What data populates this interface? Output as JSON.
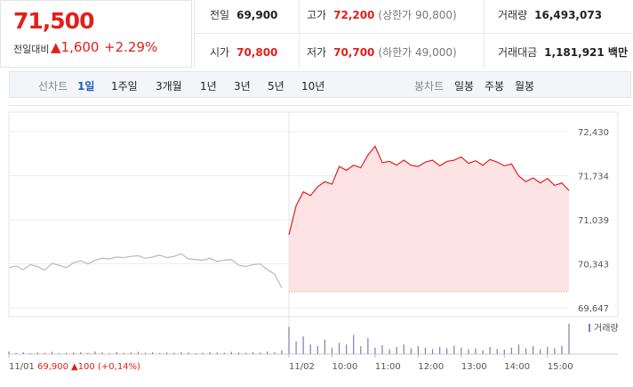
{
  "quote": {
    "price": "71,500",
    "change_label": "전일대비",
    "change": "▲1,600",
    "rate": "+2.29%"
  },
  "info": [
    {
      "label": "전일",
      "value": "69,900"
    },
    {
      "label": "고가",
      "value": "72,200",
      "note": "(상한가 90,800)"
    },
    {
      "label": "거래량",
      "value": "16,493,073"
    },
    {
      "label": "시가",
      "value": "70,800"
    },
    {
      "label": "저가",
      "value": "70,700",
      "note": "(하한가 49,000)"
    },
    {
      "label": "거래대금",
      "value": "1,181,921 백만"
    }
  ],
  "tabs": {
    "line_label": "선차트",
    "line": [
      "1일",
      "1주일",
      "3개월",
      "1년",
      "3년",
      "5년",
      "10년"
    ],
    "candle_label": "봉차트",
    "candle": [
      "일봉",
      "주봉",
      "월봉"
    ],
    "selected": "1일"
  },
  "chart_data": {
    "type": "line",
    "x": [
      0,
      10,
      20,
      30,
      40,
      50,
      60,
      70,
      80,
      90,
      100,
      110,
      120,
      130,
      140,
      150,
      160,
      170,
      180,
      190,
      200,
      210,
      220,
      230,
      240,
      250,
      260,
      270,
      280,
      290,
      300,
      310,
      320,
      330,
      340,
      350,
      360,
      370,
      380,
      390,
      400,
      410,
      420,
      430,
      440,
      450,
      460,
      470,
      480,
      490,
      500,
      510,
      520,
      530,
      540,
      550,
      560,
      570,
      580,
      590,
      600,
      610,
      620,
      630,
      640,
      650,
      660,
      670,
      680,
      690,
      700,
      710,
      720,
      730,
      740,
      750,
      760,
      770,
      780
    ],
    "series": [
      {
        "color": "#b8b8b8",
        "values": [
          70280,
          70310,
          70250,
          70330,
          70300,
          70240,
          70350,
          70320,
          70280,
          70360,
          70390,
          70340,
          70400,
          70430,
          70420,
          70450,
          70440,
          70460,
          70470,
          70430,
          70450,
          70480,
          70440,
          70460,
          70500,
          70420,
          70410,
          70400,
          70430,
          70380,
          70400,
          70410,
          70320,
          70300,
          70330,
          70340,
          70250,
          70180,
          69960,
          null,
          null,
          null,
          null,
          null,
          null,
          null,
          null,
          null,
          null,
          null,
          null,
          null,
          null,
          null,
          null,
          null,
          null,
          null,
          null,
          null,
          null,
          null,
          null,
          null,
          null,
          null,
          null,
          null,
          null,
          null,
          null,
          null,
          null,
          null,
          null,
          null,
          null,
          null,
          null
        ]
      },
      {
        "color": "#e02020",
        "fill": "#fde3e3",
        "values": [
          null,
          null,
          null,
          null,
          null,
          null,
          null,
          null,
          null,
          null,
          null,
          null,
          null,
          null,
          null,
          null,
          null,
          null,
          null,
          null,
          null,
          null,
          null,
          null,
          null,
          null,
          null,
          null,
          null,
          null,
          null,
          null,
          null,
          null,
          null,
          null,
          null,
          null,
          null,
          70800,
          71260,
          71480,
          71420,
          71560,
          71640,
          71600,
          71880,
          71820,
          71900,
          71860,
          72060,
          72200,
          71940,
          71960,
          71900,
          71980,
          71900,
          71880,
          71950,
          71980,
          71890,
          71960,
          71980,
          72030,
          71930,
          71970,
          71900,
          71990,
          71950,
          71890,
          71920,
          71730,
          71640,
          71700,
          71620,
          71690,
          71580,
          71620,
          71500
        ]
      }
    ],
    "area_base": 69900,
    "xlim": [
      0,
      780
    ],
    "xticks": [
      {
        "value": 0,
        "label": "11/01"
      },
      {
        "value": 390,
        "label": "11/02"
      },
      {
        "value": 450,
        "label": "10:00"
      },
      {
        "value": 510,
        "label": "11:00"
      },
      {
        "value": 570,
        "label": "12:00"
      },
      {
        "value": 630,
        "label": "13:00"
      },
      {
        "value": 690,
        "label": "14:00"
      },
      {
        "value": 750,
        "label": "15:00"
      }
    ],
    "ylim": [
      69647,
      72430
    ],
    "yticks": [
      {
        "value": 72430,
        "label": "72,430"
      },
      {
        "value": 71734,
        "label": "71,734"
      },
      {
        "value": 71039,
        "label": "71,039"
      },
      {
        "value": 70343,
        "label": "70,343"
      },
      {
        "value": 69647,
        "label": "69,647"
      }
    ],
    "grid": true,
    "volume": {
      "label": "거래량",
      "color": "#8878b8",
      "vlim": [
        0,
        100
      ],
      "values": [
        8,
        4,
        6,
        3,
        5,
        4,
        7,
        3,
        4,
        5,
        6,
        4,
        8,
        5,
        3,
        6,
        4,
        5,
        7,
        4,
        6,
        3,
        5,
        4,
        6,
        5,
        3,
        4,
        6,
        5,
        4,
        7,
        5,
        4,
        6,
        5,
        8,
        6,
        12,
        85,
        40,
        55,
        30,
        25,
        45,
        20,
        35,
        30,
        60,
        25,
        50,
        20,
        28,
        15,
        22,
        30,
        18,
        25,
        20,
        15,
        22,
        18,
        26,
        20,
        15,
        18,
        12,
        22,
        16,
        14,
        20,
        30,
        18,
        25,
        15,
        22,
        18,
        26,
        95
      ]
    },
    "prev_day": {
      "close": "69,900",
      "change": "▲100",
      "rate": "(+0,14%)"
    }
  }
}
